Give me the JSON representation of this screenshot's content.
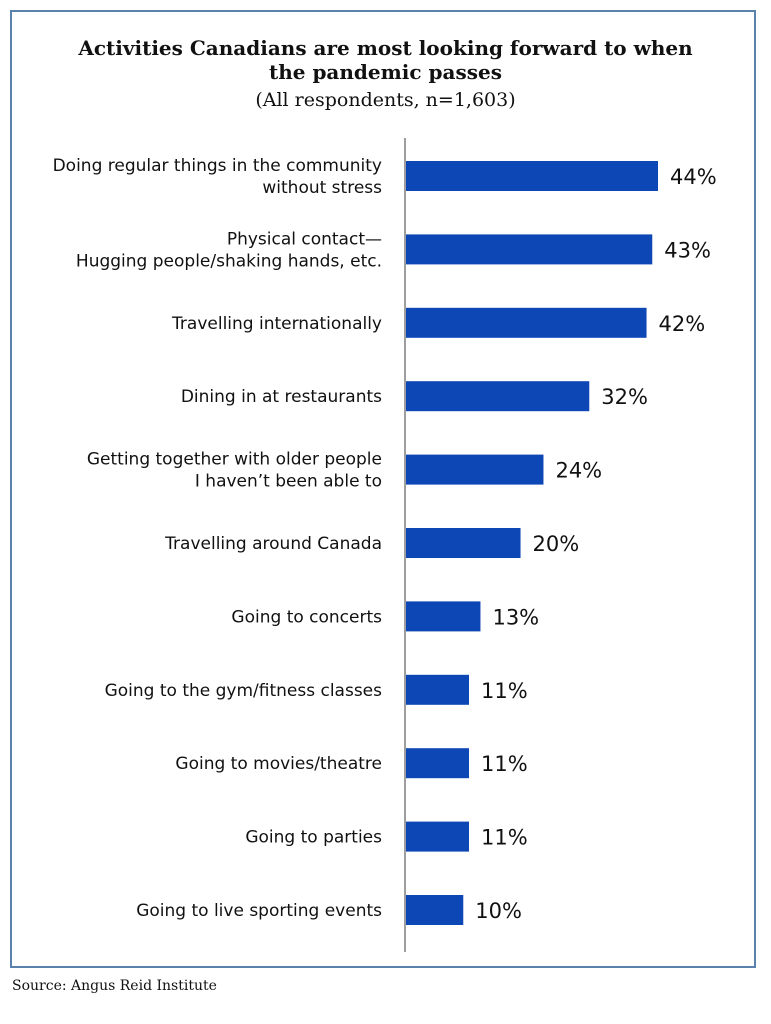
{
  "title": "Activities Canadians are most looking forward to when the pandemic passes",
  "subtitle": "(All respondents, n=1,603)",
  "source": "Source: Angus Reid Institute",
  "colors": {
    "bar": "#0d47b5",
    "axis": "#9e9e9e",
    "border": "#5b82ad"
  },
  "chart_data": {
    "type": "bar",
    "orientation": "horizontal",
    "categories": [
      [
        "Doing regular things in the community",
        "without stress"
      ],
      [
        "Physical contact—",
        "Hugging people/shaking hands, etc."
      ],
      [
        "Travelling internationally"
      ],
      [
        "Dining in at restaurants"
      ],
      [
        "Getting together with older people",
        "I haven’t been able to"
      ],
      [
        "Travelling around Canada"
      ],
      [
        "Going to concerts"
      ],
      [
        "Going to the gym/fitness classes"
      ],
      [
        "Going to movies/theatre"
      ],
      [
        "Going to parties"
      ],
      [
        "Going to live sporting events"
      ]
    ],
    "values": [
      44,
      43,
      42,
      32,
      24,
      20,
      13,
      11,
      11,
      11,
      10
    ],
    "value_suffix": "%",
    "xlim": [
      0,
      44
    ],
    "grid": false,
    "legend": "none"
  }
}
